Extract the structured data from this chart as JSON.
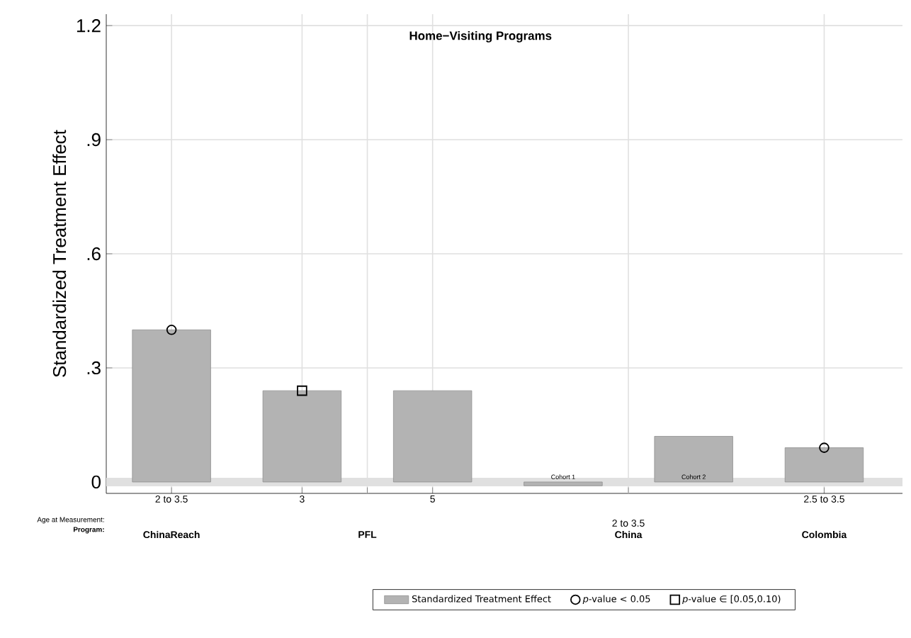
{
  "chart_data": {
    "type": "bar",
    "title": "**Home−Visiting Programs**",
    "ylabel": "Standardized Treatment Effect",
    "categories": [
      "2 to 3.5",
      "3",
      "5",
      null,
      null,
      "2.5 to 3.5"
    ],
    "series": [
      {
        "name": "Standardized Treatment Effect",
        "color": "#b3b3b3",
        "values": [
          0.4,
          0.24,
          0.24,
          -0.01,
          0.12,
          0.09
        ]
      },
      {
        "name": "*p*-value < 0.05",
        "type": "scatter",
        "marker": "circle",
        "color": "#000000",
        "values": [
          0.4,
          null,
          null,
          null,
          null,
          0.09
        ]
      },
      {
        "name": "*p*-value ∈ [0.05,0.10)",
        "type": "scatter",
        "marker": "square",
        "color": "#000000",
        "values": [
          null,
          0.24,
          null,
          null,
          null,
          null
        ]
      }
    ],
    "ylim": [
      -0.03,
      1.23
    ],
    "yticks": [
      0,
      {
        "value": 0.3,
        "label": ".3"
      },
      {
        "value": 0.6,
        "label": ".6"
      },
      {
        "value": 0.9,
        "label": ".9"
      },
      1.2
    ],
    "ref_lines": [
      {
        "axis": "y",
        "value": 0,
        "color": "#e0e0e0"
      }
    ],
    "annotations": [
      "Age at Measurement:",
      "Program:",
      "ChinaReach",
      "PFL",
      "2 to 3.5",
      "China",
      "Colombia",
      "Cohort 1",
      "Cohort 2"
    ],
    "grid": true,
    "legend": "bottom"
  }
}
